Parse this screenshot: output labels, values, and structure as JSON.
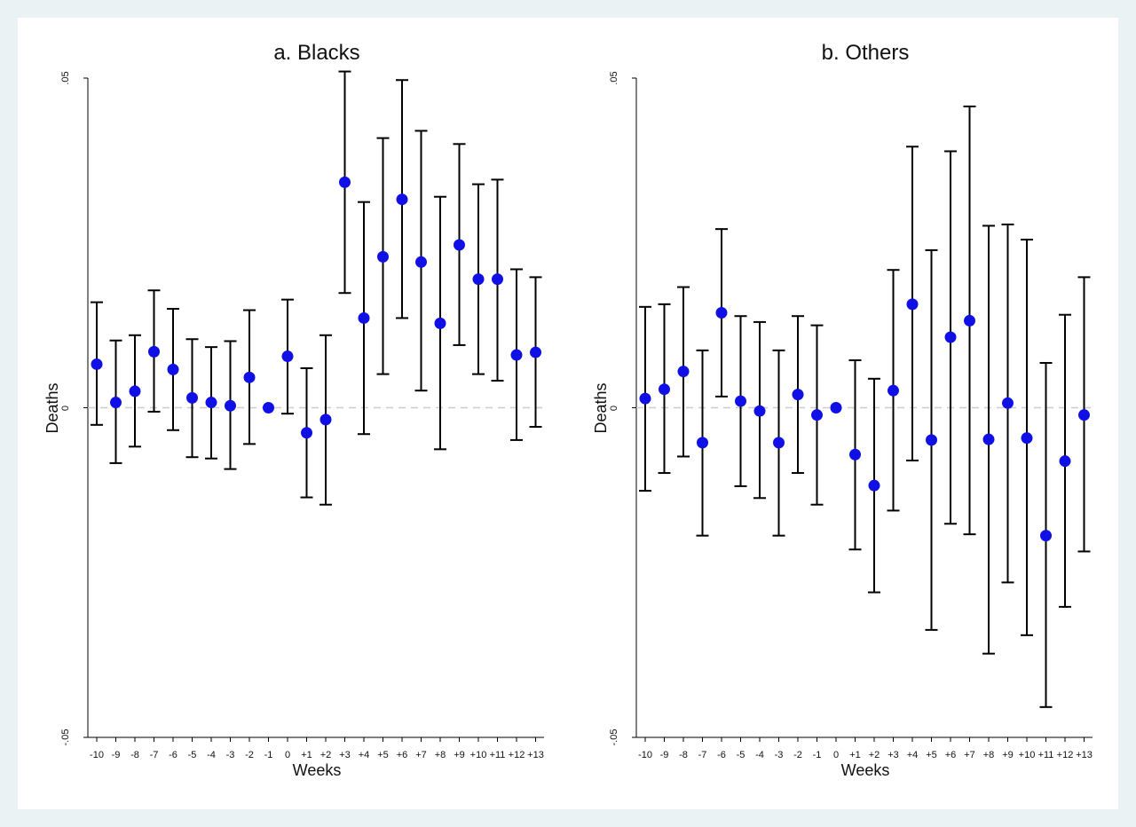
{
  "chart_data": [
    {
      "type": "scatter",
      "title": "a. Blacks",
      "xlabel": "Weeks",
      "ylabel": "Deaths",
      "ylim": [
        -0.05,
        0.05
      ],
      "yticks": [
        ".05",
        "0",
        "-.05"
      ],
      "reference_line": 0,
      "categories": [
        "-10",
        "-9",
        "-8",
        "-7",
        "-6",
        "-5",
        "-4",
        "-3",
        "-2",
        "-1",
        "0",
        "+1",
        "+2",
        "+3",
        "+4",
        "+5",
        "+6",
        "+7",
        "+8",
        "+9",
        "+10",
        "+11",
        "+12",
        "+13"
      ],
      "values": [
        0.0066,
        0.0008,
        0.0025,
        0.0085,
        0.0058,
        0.0015,
        0.0008,
        0.0003,
        0.0046,
        0.0,
        0.0078,
        -0.0038,
        -0.0018,
        0.0342,
        0.0136,
        0.0229,
        0.0316,
        0.0221,
        0.0128,
        0.0247,
        0.0195,
        0.0195,
        0.008,
        0.0084
      ],
      "lower": [
        -0.0026,
        -0.0084,
        -0.0059,
        -0.0006,
        -0.0034,
        -0.0075,
        -0.0077,
        -0.0093,
        -0.0055,
        0.0,
        -0.0009,
        -0.0136,
        -0.0147,
        0.0174,
        -0.004,
        0.0051,
        0.0136,
        0.0026,
        -0.0063,
        0.0095,
        0.0051,
        0.0041,
        -0.0049,
        -0.0029
      ],
      "upper": [
        0.016,
        0.0102,
        0.011,
        0.0178,
        0.015,
        0.0104,
        0.0092,
        0.0101,
        0.0148,
        0.0,
        0.0164,
        0.006,
        0.011,
        0.051,
        0.0312,
        0.0409,
        0.0497,
        0.042,
        0.032,
        0.04,
        0.0339,
        0.0346,
        0.021,
        0.0198
      ],
      "marker_color": "#1010e6"
    },
    {
      "type": "scatter",
      "title": "b. Others",
      "xlabel": "Weeks",
      "ylabel": "Deaths",
      "ylim": [
        -0.05,
        0.05
      ],
      "yticks": [
        ".05",
        "0",
        "-.05"
      ],
      "reference_line": 0,
      "categories": [
        "-10",
        "-9",
        "-8",
        "-7",
        "-6",
        "-5",
        "-4",
        "-3",
        "-2",
        "-1",
        "0",
        "+1",
        "+2",
        "+3",
        "+4",
        "+5",
        "+6",
        "+7",
        "+8",
        "+9",
        "+10",
        "+11",
        "+12",
        "+13"
      ],
      "values": [
        0.0014,
        0.0028,
        0.0055,
        -0.0053,
        0.0144,
        0.001,
        -0.0005,
        -0.0053,
        0.002,
        -0.0011,
        0.0,
        -0.0071,
        -0.0118,
        0.0026,
        0.0157,
        -0.0049,
        0.0107,
        0.0132,
        -0.0048,
        0.0007,
        -0.0046,
        -0.0194,
        -0.0081,
        -0.0011
      ],
      "lower": [
        -0.0126,
        -0.0099,
        -0.0074,
        -0.0194,
        0.0017,
        -0.0119,
        -0.0137,
        -0.0194,
        -0.0099,
        -0.0147,
        0.0,
        -0.0215,
        -0.028,
        -0.0156,
        -0.008,
        -0.0337,
        -0.0176,
        -0.0192,
        -0.0373,
        -0.0265,
        -0.0345,
        -0.0454,
        -0.0302,
        -0.0218
      ],
      "upper": [
        0.0153,
        0.0157,
        0.0183,
        0.0087,
        0.0271,
        0.0139,
        0.013,
        0.0087,
        0.0139,
        0.0125,
        0.0,
        0.0072,
        0.0044,
        0.0209,
        0.0396,
        0.0239,
        0.0389,
        0.0457,
        0.0276,
        0.0278,
        0.0255,
        0.0068,
        0.0141,
        0.0198
      ],
      "marker_color": "#1010e6"
    }
  ],
  "colors": {
    "marker": "#1010e6",
    "errorbar": "#000000",
    "reference_line": "#cccccc",
    "background_outer": "#eaf2f3",
    "plot_background": "#ffffff"
  }
}
